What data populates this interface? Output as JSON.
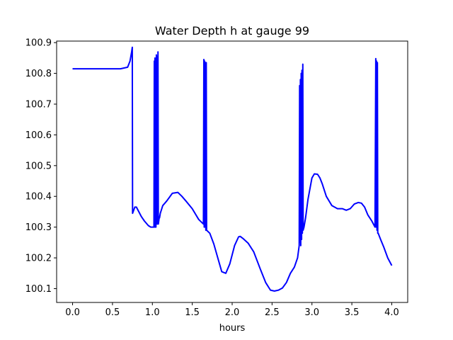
{
  "chart_data": {
    "type": "line",
    "title": "Water Depth h at gauge 99",
    "xlabel": "hours",
    "ylabel": "",
    "xlim": [
      -0.2,
      4.2
    ],
    "ylim": [
      100.055,
      100.905
    ],
    "xticks": [
      0.0,
      0.5,
      1.0,
      1.5,
      2.0,
      2.5,
      3.0,
      3.5,
      4.0
    ],
    "xtick_labels": [
      "0.0",
      "0.5",
      "1.0",
      "1.5",
      "2.0",
      "2.5",
      "3.0",
      "3.5",
      "4.0"
    ],
    "yticks": [
      100.1,
      100.2,
      100.3,
      100.4,
      100.5,
      100.6,
      100.7,
      100.8,
      100.9
    ],
    "ytick_labels": [
      "100.1",
      "100.2",
      "100.3",
      "100.4",
      "100.5",
      "100.6",
      "100.7",
      "100.8",
      "100.9"
    ],
    "grid": false,
    "series": [
      {
        "color": "#0000ff",
        "x": [
          0.0,
          0.2,
          0.45,
          0.6,
          0.69,
          0.72,
          0.74,
          0.748,
          0.752,
          0.78,
          0.8,
          0.83,
          0.86,
          0.9,
          0.95,
          0.98,
          1.0,
          1.02,
          1.024,
          1.028,
          1.032,
          1.036,
          1.04,
          1.045,
          1.05,
          1.055,
          1.06,
          1.065,
          1.07,
          1.075,
          1.08,
          1.085,
          1.09,
          1.1,
          1.13,
          1.18,
          1.25,
          1.32,
          1.37,
          1.42,
          1.5,
          1.58,
          1.64,
          1.645,
          1.65,
          1.655,
          1.66,
          1.665,
          1.67,
          1.675,
          1.68,
          1.72,
          1.77,
          1.82,
          1.87,
          1.92,
          1.97,
          2.03,
          2.08,
          2.1,
          2.14,
          2.2,
          2.27,
          2.35,
          2.42,
          2.48,
          2.53,
          2.58,
          2.63,
          2.68,
          2.73,
          2.78,
          2.82,
          2.84,
          2.845,
          2.85,
          2.855,
          2.86,
          2.865,
          2.87,
          2.875,
          2.88,
          2.885,
          2.89,
          2.9,
          2.92,
          2.95,
          3.0,
          3.03,
          3.07,
          3.1,
          3.13,
          3.18,
          3.25,
          3.32,
          3.38,
          3.43,
          3.48,
          3.53,
          3.58,
          3.62,
          3.66,
          3.7,
          3.75,
          3.79,
          3.8,
          3.805,
          3.81,
          3.815,
          3.82,
          3.825,
          3.83,
          3.86,
          3.9,
          3.95,
          4.0
        ],
        "y": [
          100.815,
          100.815,
          100.815,
          100.815,
          100.82,
          100.84,
          100.87,
          100.885,
          100.345,
          100.365,
          100.365,
          100.35,
          100.335,
          100.32,
          100.305,
          100.3,
          100.3,
          100.3,
          100.84,
          100.3,
          100.85,
          100.3,
          100.84,
          100.3,
          100.86,
          100.31,
          100.855,
          100.31,
          100.87,
          100.31,
          100.32,
          100.33,
          100.33,
          100.345,
          100.37,
          100.385,
          100.41,
          100.413,
          100.4,
          100.385,
          100.36,
          100.325,
          100.31,
          100.845,
          100.3,
          100.84,
          100.3,
          100.835,
          100.29,
          100.835,
          100.29,
          100.28,
          100.245,
          100.2,
          100.155,
          100.15,
          100.18,
          100.24,
          100.268,
          100.27,
          100.262,
          100.248,
          100.22,
          100.165,
          100.12,
          100.095,
          100.092,
          100.095,
          100.102,
          100.12,
          100.15,
          100.17,
          100.2,
          100.24,
          100.76,
          100.25,
          100.78,
          100.24,
          100.8,
          100.26,
          100.81,
          100.28,
          100.83,
          100.29,
          100.3,
          100.33,
          100.39,
          100.46,
          100.473,
          100.472,
          100.46,
          100.44,
          100.4,
          100.37,
          100.36,
          100.36,
          100.355,
          100.36,
          100.375,
          100.38,
          100.378,
          100.365,
          100.34,
          100.32,
          100.3,
          100.848,
          100.3,
          100.84,
          100.29,
          100.835,
          100.28,
          100.28,
          100.26,
          100.235,
          100.2,
          100.175
        ]
      }
    ]
  }
}
